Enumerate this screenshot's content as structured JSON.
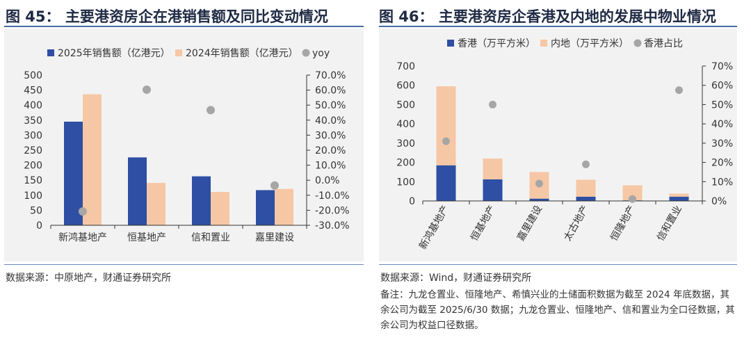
{
  "left_figure": {
    "title": "图 45：  主要港资房企在港销售额及同比变动情况",
    "source": "数据来源：中原地产，财通证券研究所"
  },
  "right_figure": {
    "title": "图 46：  主要港资房企香港及内地的发展中物业情况",
    "source": "数据来源：Wind，财通证券研究所",
    "note": "备注：九龙仓置业、恒隆地产、希慎兴业的土储面积数据为截至 2024 年底数据，其余公司为截至 2025/6/30 数据；九龙仓置业、恒隆地产、信和置业为全口径数据，其余公司为权益口径数据。"
  },
  "chart_data": [
    {
      "type": "bar",
      "title": "主要港资房企在港销售额及同比变动情况",
      "categories": [
        "新鸿基地产",
        "恒基地产",
        "信和置业",
        "嘉里建设"
      ],
      "series": [
        {
          "name": "2025年销售额（亿港元）",
          "kind": "bar",
          "axis": "left",
          "color": "#2e4fa3",
          "values": [
            345,
            226,
            163,
            117
          ]
        },
        {
          "name": "2024年销售额（亿港元）",
          "kind": "bar",
          "axis": "left",
          "color": "#f6c7a4",
          "values": [
            436,
            141,
            111,
            121
          ]
        },
        {
          "name": "yoy",
          "kind": "scatter",
          "axis": "right",
          "color": "#a6a6a6",
          "values": [
            -0.208,
            0.603,
            0.467,
            -0.035
          ]
        }
      ],
      "ylim": [
        0,
        500
      ],
      "yticks": [
        "0",
        "50",
        "100",
        "150",
        "200",
        "250",
        "300",
        "350",
        "400",
        "450",
        "500"
      ],
      "y2lim": [
        -0.3,
        0.7
      ],
      "y2ticks": [
        "-30.0%",
        "-20.0%",
        "-10.0%",
        "0.0%",
        "10.0%",
        "20.0%",
        "30.0%",
        "40.0%",
        "50.0%",
        "60.0%",
        "70.0%"
      ]
    },
    {
      "type": "bar",
      "stacked": true,
      "title": "主要港资房企香港及内地的发展中物业情况",
      "categories": [
        "新鸿基地产",
        "恒基地产",
        "嘉里建设",
        "太古地产",
        "恒隆地产",
        "信和置业"
      ],
      "series": [
        {
          "name": "香港（万平方米）",
          "kind": "bar",
          "axis": "left",
          "color": "#2e4fa3",
          "values": [
            185,
            112,
            12,
            22,
            3,
            22
          ]
        },
        {
          "name": "内地（万平方米）",
          "kind": "bar",
          "axis": "left",
          "color": "#f6c7a4",
          "values": [
            410,
            108,
            138,
            88,
            78,
            16
          ]
        },
        {
          "name": "香港占比",
          "kind": "scatter",
          "axis": "right",
          "color": "#a6a6a6",
          "values": [
            0.31,
            0.5,
            0.09,
            0.19,
            0.01,
            0.575
          ]
        }
      ],
      "ylim": [
        0,
        700
      ],
      "yticks": [
        "0",
        "100",
        "200",
        "300",
        "400",
        "500",
        "600",
        "700"
      ],
      "y2lim": [
        0,
        0.7
      ],
      "y2ticks": [
        "0%",
        "10%",
        "20%",
        "30%",
        "40%",
        "50%",
        "60%",
        "70%"
      ]
    }
  ]
}
